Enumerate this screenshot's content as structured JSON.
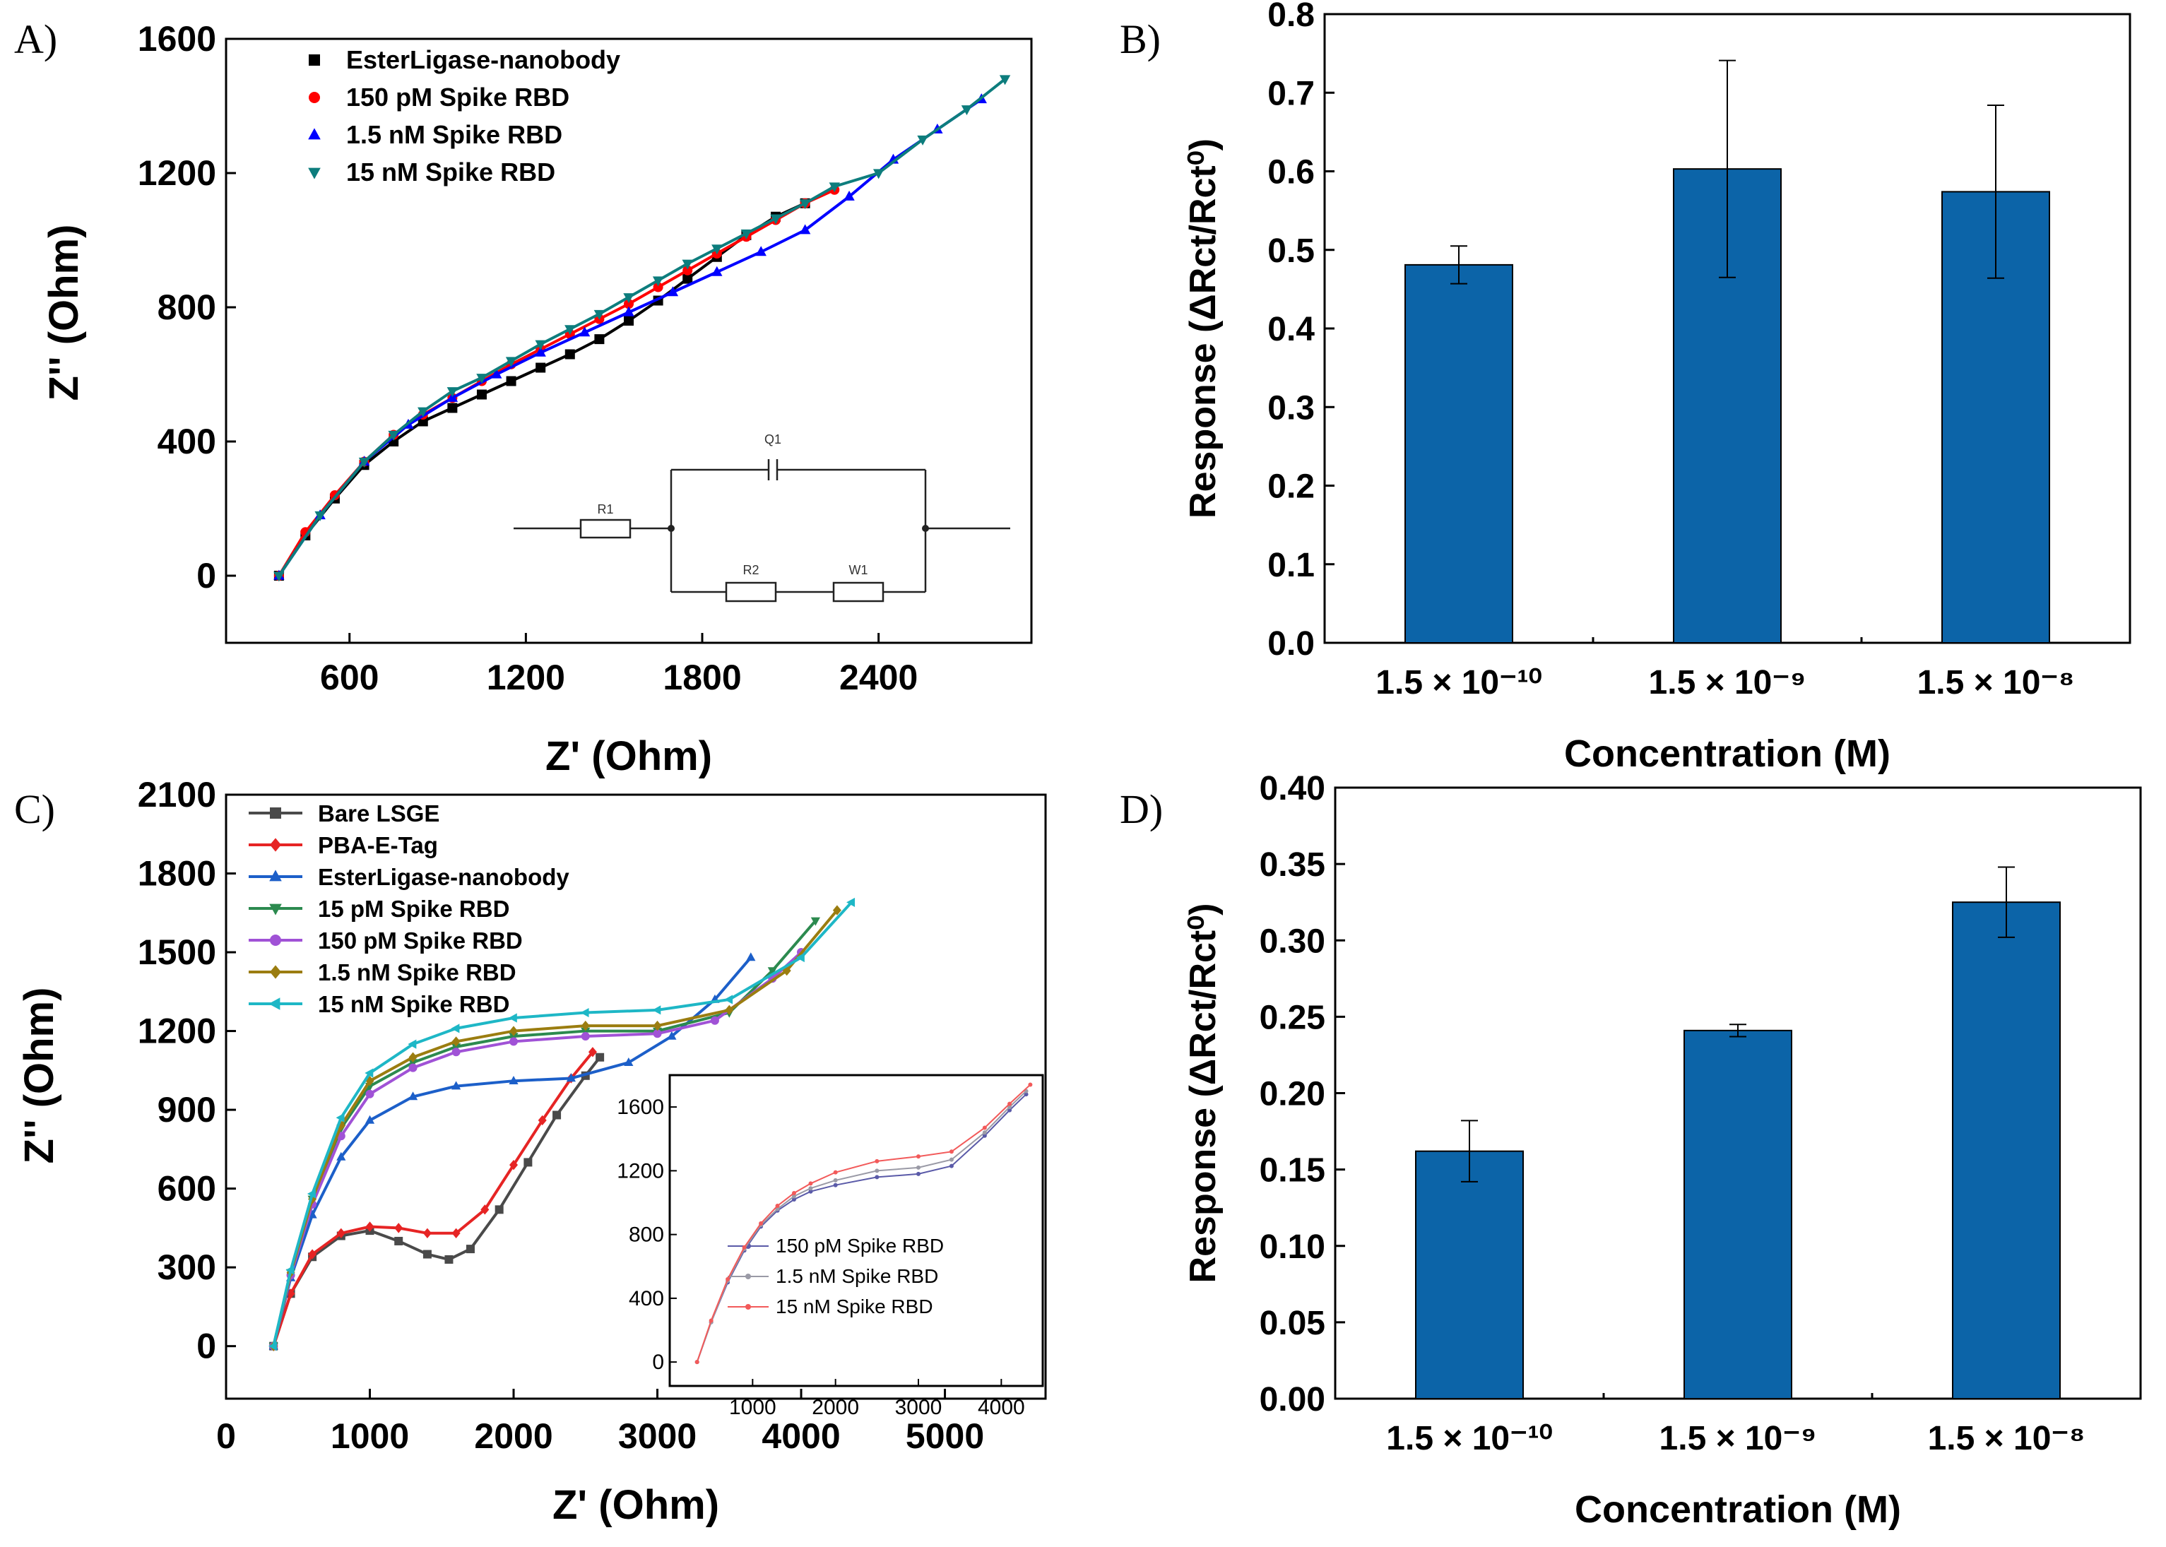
{
  "chart_data": [
    {
      "id": "A",
      "type": "scatter",
      "panel_label": "A)",
      "xlabel": "Z' (Ohm)",
      "ylabel": "Z'' (Ohm)",
      "xlim": [
        180,
        2920
      ],
      "ylim": [
        -200,
        1600
      ],
      "xticks": [
        600,
        1200,
        1800,
        2400
      ],
      "yticks": [
        0,
        400,
        800,
        1200,
        1600
      ],
      "xtick_labels": [
        "600",
        "1200",
        "1800",
        "2400"
      ],
      "ytick_labels": [
        "0",
        "400",
        "800",
        "1200",
        "1600"
      ],
      "legend_position": "top-left",
      "series": [
        {
          "name": "EsterLigase-nanobody",
          "color": "#000000",
          "marker": "square",
          "x": [
            360,
            450,
            550,
            650,
            750,
            850,
            950,
            1050,
            1150,
            1250,
            1350,
            1450,
            1550,
            1650,
            1750,
            1850,
            1950,
            2050,
            2150
          ],
          "y": [
            0,
            120,
            230,
            330,
            400,
            460,
            500,
            540,
            580,
            620,
            660,
            705,
            760,
            820,
            885,
            950,
            1015,
            1070,
            1110
          ]
        },
        {
          "name": "150 pM Spike RBD",
          "color": "#ff0000",
          "marker": "circle",
          "x": [
            360,
            450,
            550,
            650,
            750,
            850,
            950,
            1050,
            1150,
            1250,
            1350,
            1450,
            1550,
            1650,
            1750,
            1850,
            1950,
            2050,
            2150,
            2250
          ],
          "y": [
            0,
            130,
            240,
            340,
            420,
            480,
            530,
            580,
            630,
            675,
            720,
            765,
            810,
            860,
            910,
            960,
            1010,
            1060,
            1110,
            1150
          ]
        },
        {
          "name": "1.5 nM Spike RBD",
          "color": "#0000ff",
          "marker": "triangle-up",
          "x": [
            360,
            500,
            650,
            800,
            950,
            1100,
            1250,
            1400,
            1550,
            1700,
            1850,
            2000,
            2150,
            2300,
            2450,
            2600,
            2750
          ],
          "y": [
            0,
            180,
            340,
            450,
            530,
            600,
            665,
            725,
            785,
            845,
            905,
            965,
            1030,
            1130,
            1240,
            1330,
            1420
          ]
        },
        {
          "name": "15 nM Spike RBD",
          "color": "#0d7d7d",
          "marker": "triangle-down",
          "x": [
            360,
            500,
            650,
            750,
            850,
            950,
            1050,
            1150,
            1250,
            1350,
            1450,
            1550,
            1650,
            1750,
            1850,
            1950,
            2050,
            2150,
            2250,
            2400,
            2550,
            2700,
            2830
          ],
          "y": [
            0,
            180,
            340,
            420,
            490,
            550,
            590,
            640,
            690,
            735,
            780,
            830,
            880,
            930,
            975,
            1020,
            1065,
            1110,
            1160,
            1200,
            1300,
            1390,
            1480
          ]
        }
      ],
      "inset_circuit_labels": [
        "Q1",
        "R1",
        "R2",
        "W1"
      ]
    },
    {
      "id": "B",
      "type": "bar",
      "panel_label": "B)",
      "xlabel": "Concentration (M)",
      "ylabel": "Response (ΔRct/Rct⁰)",
      "ylim": [
        0,
        0.8
      ],
      "yticks": [
        0.0,
        0.1,
        0.2,
        0.3,
        0.4,
        0.5,
        0.6,
        0.7,
        0.8
      ],
      "ytick_labels": [
        "0.0",
        "0.1",
        "0.2",
        "0.3",
        "0.4",
        "0.5",
        "0.6",
        "0.7",
        "0.8"
      ],
      "categories": [
        "1.5 × 10⁻¹⁰",
        "1.5 × 10⁻⁹",
        "1.5 × 10⁻⁸"
      ],
      "values": [
        0.481,
        0.603,
        0.574
      ],
      "errors": [
        0.024,
        0.138,
        0.11
      ],
      "bar_color": "#0c64a8"
    },
    {
      "id": "C",
      "type": "line",
      "panel_label": "C)",
      "xlabel": "Z' (Ohm)",
      "ylabel": "Z'' (Ohm)",
      "xlim": [
        0,
        5700
      ],
      "ylim": [
        -200,
        2100
      ],
      "xticks": [
        0,
        1000,
        2000,
        3000,
        4000,
        5000
      ],
      "yticks": [
        0,
        300,
        600,
        900,
        1200,
        1500,
        1800,
        2100
      ],
      "xtick_labels": [
        "0",
        "1000",
        "2000",
        "3000",
        "4000",
        "5000"
      ],
      "ytick_labels": [
        "0",
        "300",
        "600",
        "900",
        "1200",
        "1500",
        "1800",
        "2100"
      ],
      "legend_position": "top-left",
      "series": [
        {
          "name": "Bare LSGE",
          "color": "#4a4a4a",
          "marker": "square",
          "x": [
            330,
            450,
            600,
            800,
            1000,
            1200,
            1400,
            1550,
            1700,
            1900,
            2100,
            2300,
            2500,
            2600
          ],
          "y": [
            0,
            200,
            340,
            420,
            440,
            400,
            350,
            330,
            370,
            520,
            700,
            880,
            1030,
            1100
          ]
        },
        {
          "name": "PBA-E-Tag",
          "color": "#e62424",
          "marker": "diamond",
          "x": [
            330,
            450,
            600,
            800,
            1000,
            1200,
            1400,
            1600,
            1800,
            2000,
            2200,
            2400,
            2550
          ],
          "y": [
            0,
            200,
            350,
            430,
            455,
            450,
            430,
            430,
            520,
            690,
            860,
            1020,
            1120
          ]
        },
        {
          "name": "EsterLigase-nanobody",
          "color": "#1c5fc9",
          "marker": "triangle-up",
          "x": [
            330,
            450,
            600,
            800,
            1000,
            1300,
            1600,
            2000,
            2400,
            2800,
            3100,
            3400,
            3650
          ],
          "y": [
            0,
            260,
            500,
            720,
            860,
            950,
            990,
            1010,
            1020,
            1080,
            1180,
            1320,
            1480
          ]
        },
        {
          "name": "15 pM Spike RBD",
          "color": "#2c8a4f",
          "marker": "triangle-down",
          "x": [
            330,
            450,
            600,
            800,
            1000,
            1300,
            1600,
            2000,
            2500,
            3000,
            3500,
            3800,
            4100
          ],
          "y": [
            0,
            280,
            560,
            830,
            990,
            1080,
            1140,
            1180,
            1200,
            1200,
            1270,
            1430,
            1620
          ]
        },
        {
          "name": "150 pM Spike RBD",
          "color": "#a052d6",
          "marker": "circle",
          "x": [
            330,
            450,
            600,
            800,
            1000,
            1300,
            1600,
            2000,
            2500,
            3000,
            3400,
            3800,
            4000
          ],
          "y": [
            0,
            270,
            540,
            800,
            960,
            1060,
            1120,
            1160,
            1180,
            1190,
            1240,
            1400,
            1500
          ]
        },
        {
          "name": "1.5 nM Spike RBD",
          "color": "#9b7d10",
          "marker": "diamond",
          "x": [
            330,
            450,
            600,
            800,
            1000,
            1300,
            1600,
            2000,
            2500,
            3000,
            3500,
            3900,
            4250
          ],
          "y": [
            0,
            280,
            560,
            840,
            1010,
            1100,
            1160,
            1200,
            1220,
            1220,
            1280,
            1430,
            1660
          ]
        },
        {
          "name": "15 nM Spike RBD",
          "color": "#1eb7c6",
          "marker": "triangle-left",
          "x": [
            330,
            450,
            600,
            800,
            1000,
            1300,
            1600,
            2000,
            2500,
            3000,
            3500,
            4000,
            4350
          ],
          "y": [
            0,
            290,
            580,
            870,
            1040,
            1150,
            1210,
            1250,
            1270,
            1280,
            1320,
            1480,
            1690
          ]
        }
      ],
      "inset": {
        "xlim": [
          0,
          4500
        ],
        "ylim": [
          -150,
          1800
        ],
        "xticks": [
          1000,
          2000,
          3000,
          4000
        ],
        "yticks": [
          0,
          400,
          800,
          1200,
          1600
        ],
        "xtick_labels": [
          "1000",
          "2000",
          "3000",
          "4000"
        ],
        "ytick_labels": [
          "0",
          "400",
          "800",
          "1200",
          "1600"
        ],
        "series": [
          {
            "name": "150 pM Spike RBD",
            "color": "#5a5aa8",
            "x": [
              330,
              500,
              700,
              900,
              1100,
              1300,
              1500,
              1700,
              2000,
              2500,
              3000,
              3400,
              3800,
              4100,
              4300
            ],
            "y": [
              0,
              250,
              500,
              700,
              850,
              950,
              1020,
              1070,
              1110,
              1160,
              1180,
              1230,
              1420,
              1580,
              1680
            ]
          },
          {
            "name": "1.5 nM Spike RBD",
            "color": "#9a9aa6",
            "x": [
              330,
              500,
              700,
              900,
              1100,
              1300,
              1500,
              1700,
              2000,
              2500,
              3000,
              3400,
              3800,
              4100,
              4300
            ],
            "y": [
              0,
              250,
              510,
              710,
              860,
              960,
              1040,
              1090,
              1140,
              1200,
              1220,
              1270,
              1440,
              1600,
              1700
            ]
          },
          {
            "name": "15 nM Spike RBD",
            "color": "#f25a5a",
            "x": [
              330,
              500,
              700,
              900,
              1100,
              1300,
              1500,
              1700,
              2000,
              2500,
              3000,
              3400,
              3800,
              4100,
              4350
            ],
            "y": [
              0,
              260,
              520,
              720,
              870,
              980,
              1060,
              1120,
              1190,
              1260,
              1290,
              1320,
              1470,
              1620,
              1740
            ]
          }
        ]
      }
    },
    {
      "id": "D",
      "type": "bar",
      "panel_label": "D)",
      "xlabel": "Concentration (M)",
      "ylabel": "Response (ΔRct/Rct⁰)",
      "ylim": [
        0,
        0.4
      ],
      "yticks": [
        0.0,
        0.05,
        0.1,
        0.15,
        0.2,
        0.25,
        0.3,
        0.35,
        0.4
      ],
      "ytick_labels": [
        "0.00",
        "0.05",
        "0.10",
        "0.15",
        "0.20",
        "0.25",
        "0.30",
        "0.35",
        "0.40"
      ],
      "categories": [
        "1.5 × 10⁻¹⁰",
        "1.5 × 10⁻⁹",
        "1.5 × 10⁻⁸"
      ],
      "values": [
        0.162,
        0.241,
        0.325
      ],
      "errors": [
        0.02,
        0.004,
        0.023
      ],
      "bar_color": "#0c64a8"
    }
  ]
}
